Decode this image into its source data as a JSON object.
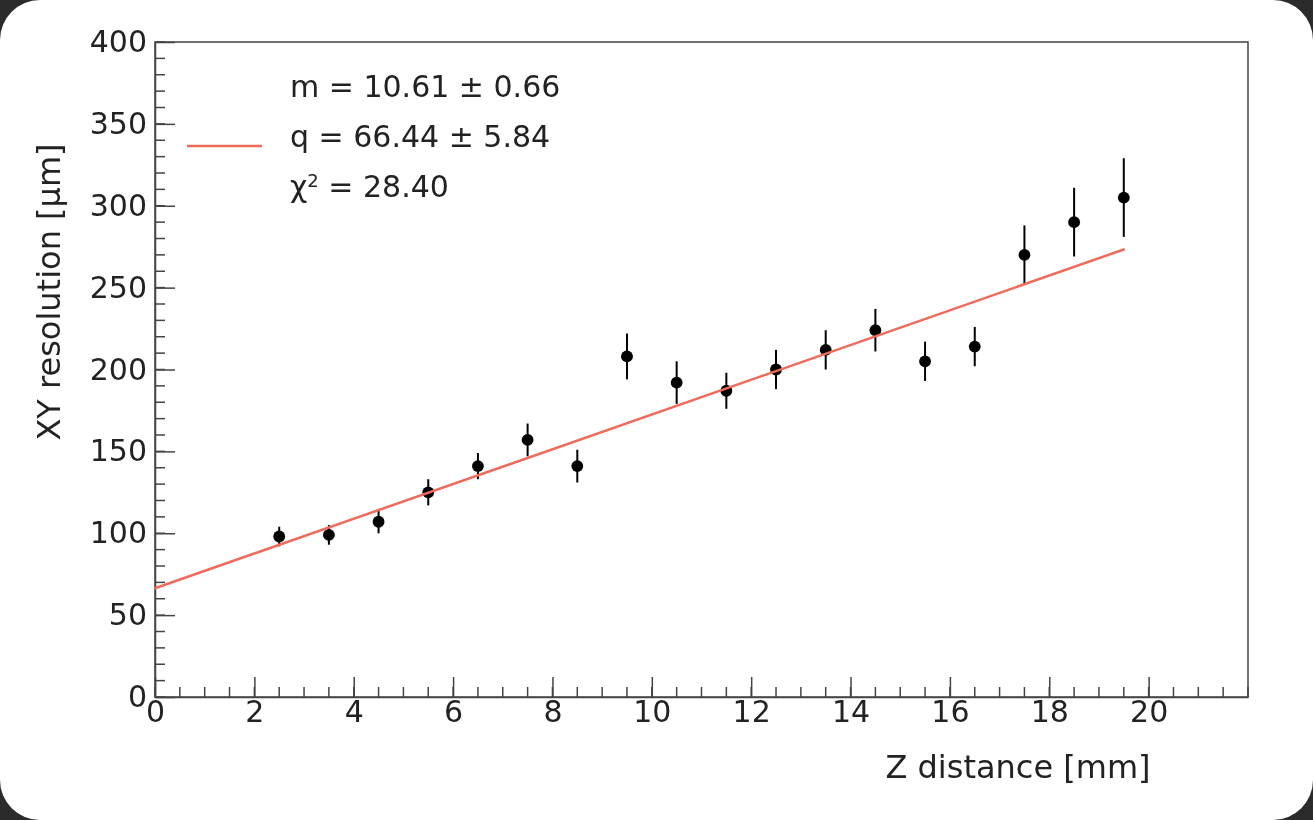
{
  "chart_data": {
    "type": "scatter",
    "xlabel": "Z distance [mm]",
    "ylabel": "XY resolution [µm]",
    "xlim": [
      0,
      22
    ],
    "xticks": [
      0,
      2,
      4,
      6,
      8,
      10,
      12,
      14,
      16,
      18,
      20
    ],
    "ylim": [
      0,
      400
    ],
    "yticks": [
      0,
      50,
      100,
      150,
      200,
      250,
      300,
      350,
      400
    ],
    "grid": false,
    "legend": "top left",
    "series": [
      {
        "marker": "circle",
        "color": "#000000",
        "x": [
          2.5,
          3.5,
          4.5,
          5.5,
          6.5,
          7.5,
          8.5,
          9.5,
          10.5,
          11.5,
          12.5,
          13.5,
          14.5,
          15.5,
          16.5,
          17.5,
          18.5,
          19.5
        ],
        "values": [
          98,
          99,
          107,
          125,
          141,
          157,
          141,
          208,
          192,
          187,
          200,
          212,
          224,
          205,
          214,
          270,
          290,
          305
        ],
        "errors": [
          6,
          6,
          7,
          8,
          8,
          10,
          10,
          14,
          13,
          11,
          12,
          12,
          13,
          12,
          12,
          18,
          21,
          24
        ]
      },
      {
        "type": "line",
        "name": "q = 66.44 ± 5.84",
        "color": "#f06a5c",
        "line_style": "solid",
        "x": [
          0,
          19.5
        ],
        "values": [
          66.4,
          273.3
        ]
      }
    ],
    "annotations": [
      "m = 10.61 ± 0.66",
      "χ$^{2}$ = 28.40"
    ]
  }
}
